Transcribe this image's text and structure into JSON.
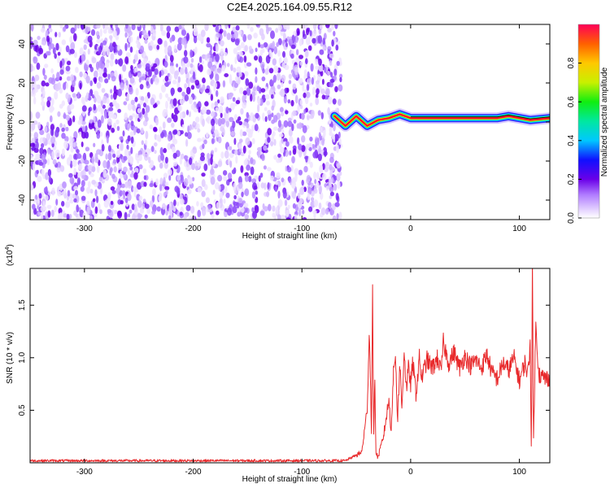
{
  "title": "C2E4.2025.164.09.55.R12",
  "colors": {
    "snr_line": "#e8292b",
    "ridge_center": "#ff0030"
  },
  "chart_data": [
    {
      "type": "heatmap",
      "xlabel": "Height of straight line (km)",
      "ylabel": "Frequency (Hz)",
      "xlim": [
        -350,
        128
      ],
      "ylim": [
        -50,
        50
      ],
      "x_ticks": [
        -300,
        -200,
        -100,
        0,
        100
      ],
      "y_ticks": [
        -40,
        -20,
        0,
        20,
        40
      ],
      "colorbar": {
        "label": "Normalized spectral amplitude",
        "range": [
          0,
          1
        ],
        "ticks": [
          "0.0",
          "0.2",
          "0.4",
          "0.6",
          "0.8"
        ],
        "colormap": "rainbow"
      },
      "noise_region_x": [
        -350,
        -70
      ],
      "ridge": {
        "x": [
          -70,
          -60,
          -50,
          -40,
          -30,
          -20,
          -10,
          0,
          20,
          40,
          60,
          80,
          90,
          100,
          110,
          128
        ],
        "frequency": [
          3,
          -2,
          3,
          -2,
          1,
          2,
          4,
          2,
          2,
          2,
          2,
          2,
          3,
          2,
          1,
          2
        ]
      }
    },
    {
      "type": "line",
      "xlabel": "Height of straight line (km)",
      "ylabel": "SNR (10 * v/v)",
      "y_multiplier": "(x10",
      "y_multiplier_exp": "4",
      "y_multiplier_close": ")",
      "xlim": [
        -350,
        128
      ],
      "ylim": [
        0,
        1.85
      ],
      "x_ticks": [
        -300,
        -200,
        -100,
        0,
        100
      ],
      "y_ticks": [
        "0.5",
        "1.0",
        "1.5"
      ],
      "y_tick_values": [
        0.5,
        1.0,
        1.5
      ],
      "series": [
        {
          "x": [
            -350,
            -300,
            -250,
            -200,
            -150,
            -100,
            -60,
            -45,
            -40,
            -38,
            -36,
            -35,
            -34,
            -33,
            -32,
            -30,
            -25,
            -20,
            -18,
            -16,
            -14,
            -12,
            -10,
            -8,
            -6,
            -4,
            -2,
            0,
            2,
            5,
            8,
            10,
            15,
            20,
            25,
            28,
            30,
            35,
            40,
            45,
            50,
            55,
            60,
            65,
            70,
            75,
            80,
            85,
            90,
            95,
            100,
            105,
            108,
            110,
            111,
            112,
            113,
            115,
            118,
            120,
            125,
            128
          ],
          "y": [
            0.02,
            0.02,
            0.02,
            0.02,
            0.02,
            0.02,
            0.02,
            0.1,
            0.5,
            1.28,
            0.3,
            1.63,
            0.2,
            0.9,
            0.1,
            0.05,
            0.25,
            0.6,
            0.3,
            0.8,
            1.05,
            0.4,
            0.95,
            0.5,
            1.1,
            0.7,
            0.9,
            0.75,
            0.95,
            0.65,
            1.0,
            0.8,
            0.98,
            0.9,
            1.0,
            0.85,
            1.15,
            0.95,
            1.05,
            0.9,
            1.02,
            0.92,
            0.98,
            0.9,
            1.03,
            0.85,
            0.8,
            0.95,
            0.88,
            1.0,
            0.78,
            0.95,
            0.85,
            1.15,
            0.1,
            1.85,
            0.2,
            1.3,
            0.85,
            0.82,
            0.8,
            0.82
          ]
        }
      ]
    }
  ]
}
